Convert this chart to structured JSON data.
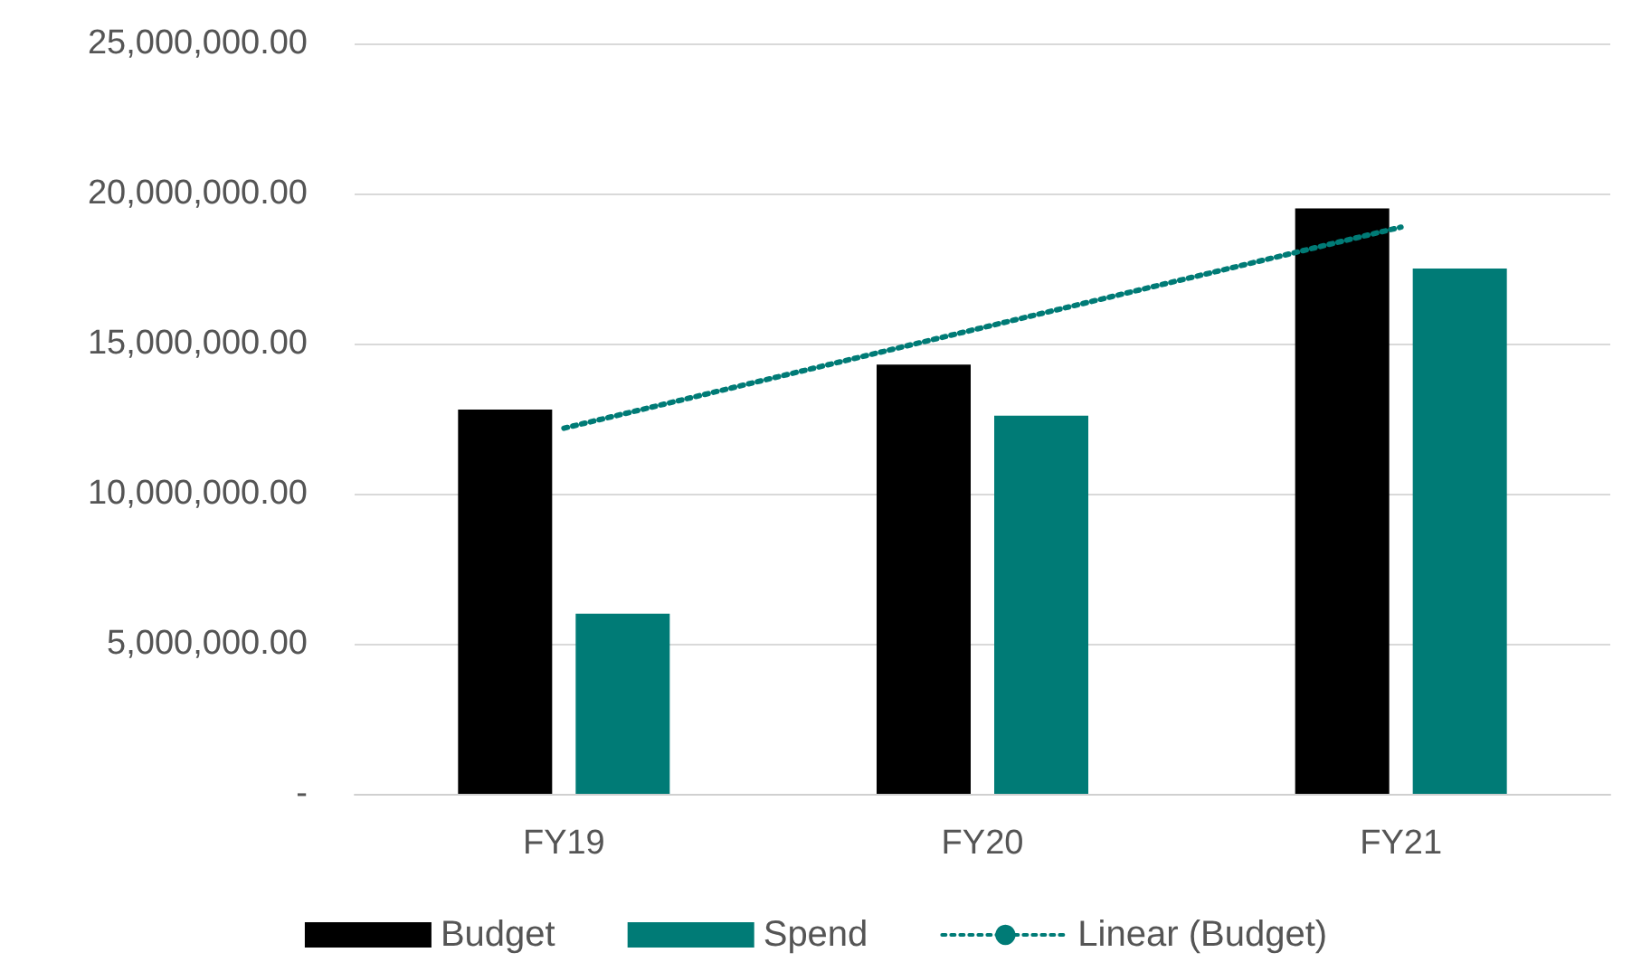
{
  "chart_data": {
    "type": "bar",
    "categories": [
      "FY19",
      "FY20",
      "FY21"
    ],
    "series": [
      {
        "name": "Budget",
        "color": "#000000",
        "values": [
          12800000,
          14300000,
          19500000
        ]
      },
      {
        "name": "Spend",
        "color": "#007b76",
        "values": [
          6000000,
          12600000,
          17500000
        ]
      },
      {
        "name": "Linear (Budget)",
        "type": "line",
        "color": "#007b76",
        "line_style": "dotted",
        "marker": "none",
        "values": [
          12180000,
          15530000,
          18880000
        ]
      }
    ],
    "ylim": [
      0,
      25000000
    ],
    "yticks": [
      {
        "value": 0,
        "label": "-"
      },
      {
        "value": 5000000,
        "label": "5,000,000.00"
      },
      {
        "value": 10000000,
        "label": "10,000,000.00"
      },
      {
        "value": 15000000,
        "label": "15,000,000.00"
      },
      {
        "value": 20000000,
        "label": "20,000,000.00"
      },
      {
        "value": 25000000,
        "label": "25,000,000.00"
      }
    ],
    "grid": "y",
    "legend": "bottom"
  }
}
